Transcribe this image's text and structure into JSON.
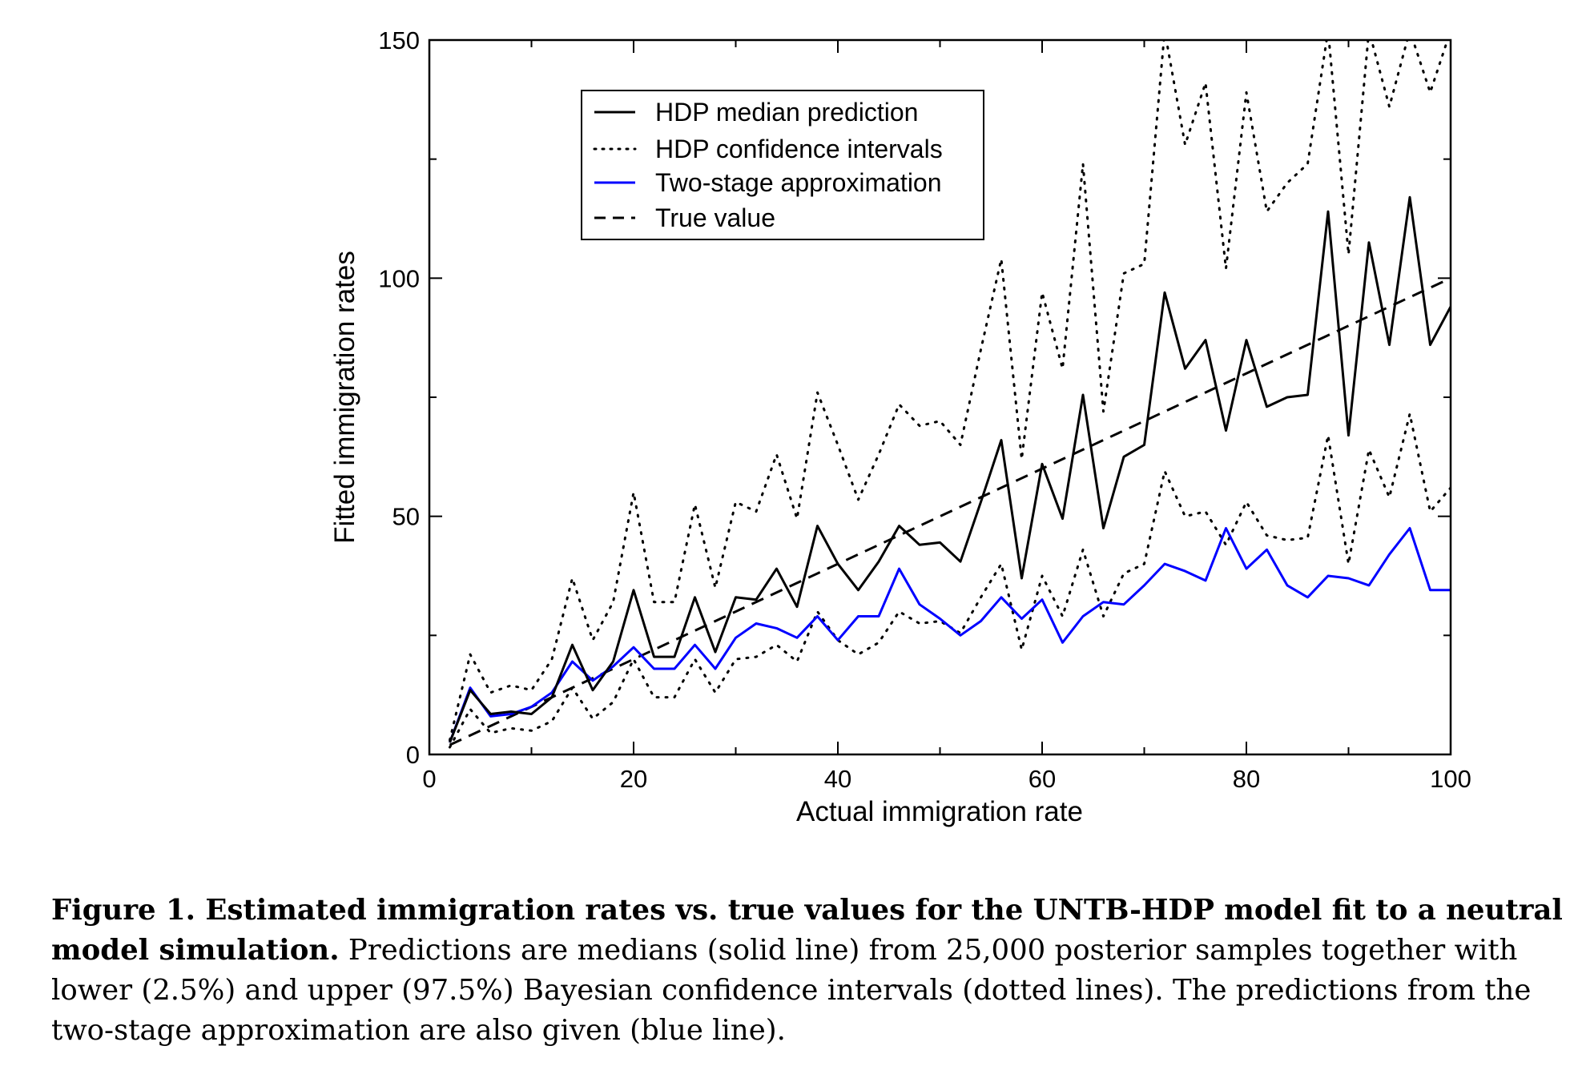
{
  "chart_data": {
    "type": "line",
    "xlabel": "Actual immigration rate",
    "ylabel": "Fitted immigration rates",
    "xlim": [
      0,
      100
    ],
    "ylim": [
      0,
      150
    ],
    "xticks": [
      0,
      20,
      40,
      60,
      80,
      100
    ],
    "yticks": [
      0,
      50,
      100,
      150
    ],
    "grid": false,
    "legend_placement": "top-left",
    "x": [
      2,
      4,
      6,
      8,
      10,
      12,
      14,
      16,
      18,
      20,
      22,
      24,
      26,
      28,
      30,
      32,
      34,
      36,
      38,
      40,
      42,
      44,
      46,
      48,
      50,
      52,
      54,
      56,
      58,
      60,
      62,
      64,
      66,
      68,
      70,
      72,
      74,
      76,
      78,
      80,
      82,
      84,
      86,
      88,
      90,
      92,
      94,
      96,
      98,
      100
    ],
    "series": [
      {
        "name": "HDP median prediction",
        "style": "solid",
        "color": "#000000",
        "values": [
          2.5,
          13.5,
          8.5,
          9,
          8.5,
          12,
          23,
          13.5,
          19.5,
          34.5,
          20.5,
          20.5,
          33,
          21.5,
          33,
          32.5,
          39,
          31,
          48,
          40,
          34.5,
          40.5,
          48,
          44,
          44.5,
          40.5,
          53,
          66,
          37,
          61,
          49.5,
          75.5,
          47.5,
          62.5,
          65,
          97,
          81,
          87,
          68,
          87,
          73,
          75,
          75.5,
          114,
          67,
          107.5,
          86,
          117,
          86,
          94
        ]
      },
      {
        "name": "HDP confidence intervals",
        "style": "dotted",
        "color": "#000000",
        "values": [
          3,
          21,
          13,
          14.5,
          13.5,
          20,
          37,
          24,
          32,
          55,
          32,
          32,
          52.5,
          35,
          53,
          51,
          63,
          49.5,
          76,
          65,
          53.5,
          63,
          73.5,
          69,
          70,
          65,
          85,
          104,
          62,
          97,
          81,
          124,
          72,
          101,
          103,
          152,
          128,
          141,
          102,
          139,
          114,
          120,
          124,
          152,
          105,
          152,
          136,
          152,
          139,
          152
        ]
      },
      {
        "name": "HDP confidence intervals lower",
        "style": "dotted",
        "color": "#000000",
        "values": [
          1.5,
          9.5,
          4.5,
          5.5,
          5,
          7,
          14,
          7.5,
          11,
          20,
          12,
          12,
          20,
          13,
          20,
          20.5,
          23,
          19.5,
          30,
          24,
          21,
          23.5,
          30,
          27.5,
          28,
          25.5,
          33,
          40,
          22,
          37.5,
          29,
          43,
          29,
          38,
          40,
          59.5,
          50,
          51,
          44,
          53,
          46,
          45,
          45.5,
          67,
          40,
          64,
          54,
          71.5,
          51,
          56
        ]
      },
      {
        "name": "Two-stage approximation",
        "style": "solid",
        "color": "#0000ff",
        "values": [
          2.5,
          14,
          8,
          8.5,
          10,
          13,
          19.5,
          15.5,
          18.5,
          22.5,
          18,
          18,
          23,
          18,
          24.5,
          27.5,
          26.5,
          24.5,
          29,
          24,
          29,
          29,
          39,
          31.5,
          28.5,
          25,
          28,
          33,
          28.5,
          32.5,
          23.5,
          29,
          32,
          31.5,
          35.5,
          40,
          38.5,
          36.5,
          47.5,
          39,
          43,
          35.5,
          33,
          37.5,
          37,
          35.5,
          42,
          47.5,
          34.5,
          34.5
        ]
      },
      {
        "name": "True value",
        "style": "dashed",
        "color": "#000000",
        "values": [
          2,
          4,
          6,
          8,
          10,
          12,
          14,
          16,
          18,
          20,
          22,
          24,
          26,
          28,
          30,
          32,
          34,
          36,
          38,
          40,
          42,
          44,
          46,
          48,
          50,
          52,
          54,
          56,
          58,
          60,
          62,
          64,
          66,
          68,
          70,
          72,
          74,
          76,
          78,
          80,
          82,
          84,
          86,
          88,
          90,
          92,
          94,
          96,
          98,
          100
        ]
      }
    ],
    "legend": [
      {
        "label": "HDP median prediction",
        "style": "solid",
        "color": "#000000"
      },
      {
        "label": "HDP confidence intervals",
        "style": "dotted",
        "color": "#000000"
      },
      {
        "label": "Two-stage approximation",
        "style": "solid",
        "color": "#0000ff"
      },
      {
        "label": "True value",
        "style": "dashed",
        "color": "#000000"
      }
    ]
  },
  "caption": {
    "bold": "Figure 1. Estimated immigration rates vs. true values for the UNTB-HDP model fit to a neutral model simulation.",
    "text": " Predictions are medians (solid line) from 25,000 posterior samples together with lower (2.5%) and upper (97.5%) Bayesian confidence intervals (dotted lines). The predictions from the two-stage approximation are also given (blue line)."
  }
}
